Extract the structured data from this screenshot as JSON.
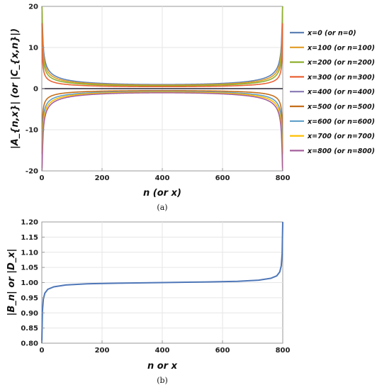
{
  "chart_data": [
    {
      "type": "line",
      "caption": "(a)",
      "xlabel": "n (or x)",
      "ylabel": "|A_{n,x}| (or |C_{x,n}|)",
      "xlim": [
        0,
        800
      ],
      "ylim": [
        -20,
        20
      ],
      "xticks": [
        "0",
        "200",
        "400",
        "600",
        "800"
      ],
      "yticks": [
        "20",
        "10",
        "0",
        "-10",
        "-20"
      ],
      "grid": true,
      "legend_position": "right",
      "series": [
        {
          "name": "x=0 (or n=0)",
          "color": "#5e81b5",
          "sign": 1,
          "level": 2.0
        },
        {
          "name": "x=100 (or n=100)",
          "color": "#e19c24",
          "sign": 1,
          "level": 1.7
        },
        {
          "name": "x=200 (or n=200)",
          "color": "#8fb032",
          "sign": 1,
          "level": 1.4
        },
        {
          "name": "x=300 (or n=300)",
          "color": "#eb6235",
          "sign": 1,
          "level": 0.95
        },
        {
          "name": "x=400 (or n=400)",
          "color": "#8778b3",
          "sign": -1,
          "level": 0.0
        },
        {
          "name": "x=500 (or n=500)",
          "color": "#c56e1a",
          "sign": -1,
          "level": 0.95
        },
        {
          "name": "x=600 (or n=600)",
          "color": "#5d9ec7",
          "sign": -1,
          "level": 1.4
        },
        {
          "name": "x=700 (or n=700)",
          "color": "#ffbf00",
          "sign": -1,
          "level": 1.7
        },
        {
          "name": "x=800 (or n=800)",
          "color": "#a5609d",
          "sign": -1,
          "level": 2.0
        }
      ]
    },
    {
      "type": "line",
      "caption": "(b)",
      "xlabel": "n or x",
      "ylabel": "|B_n| or |D_x|",
      "xlim": [
        0,
        800
      ],
      "ylim": [
        0.8,
        1.2
      ],
      "xticks": [
        "0",
        "200",
        "400",
        "600",
        "800"
      ],
      "yticks": [
        "1.20",
        "1.15",
        "1.10",
        "1.05",
        "1.00",
        "0.95",
        "0.90",
        "0.85",
        "0.80"
      ],
      "grid": true,
      "series": [
        {
          "name": "",
          "color": "#4f77b8",
          "x": [
            0,
            2,
            5,
            10,
            20,
            40,
            80,
            150,
            250,
            400,
            550,
            650,
            720,
            760,
            780,
            790,
            795,
            798,
            800
          ],
          "y": [
            0.8,
            0.905,
            0.945,
            0.965,
            0.978,
            0.986,
            0.992,
            0.996,
            0.998,
            1.0,
            1.002,
            1.004,
            1.008,
            1.014,
            1.022,
            1.035,
            1.055,
            1.095,
            1.2
          ]
        }
      ]
    }
  ]
}
